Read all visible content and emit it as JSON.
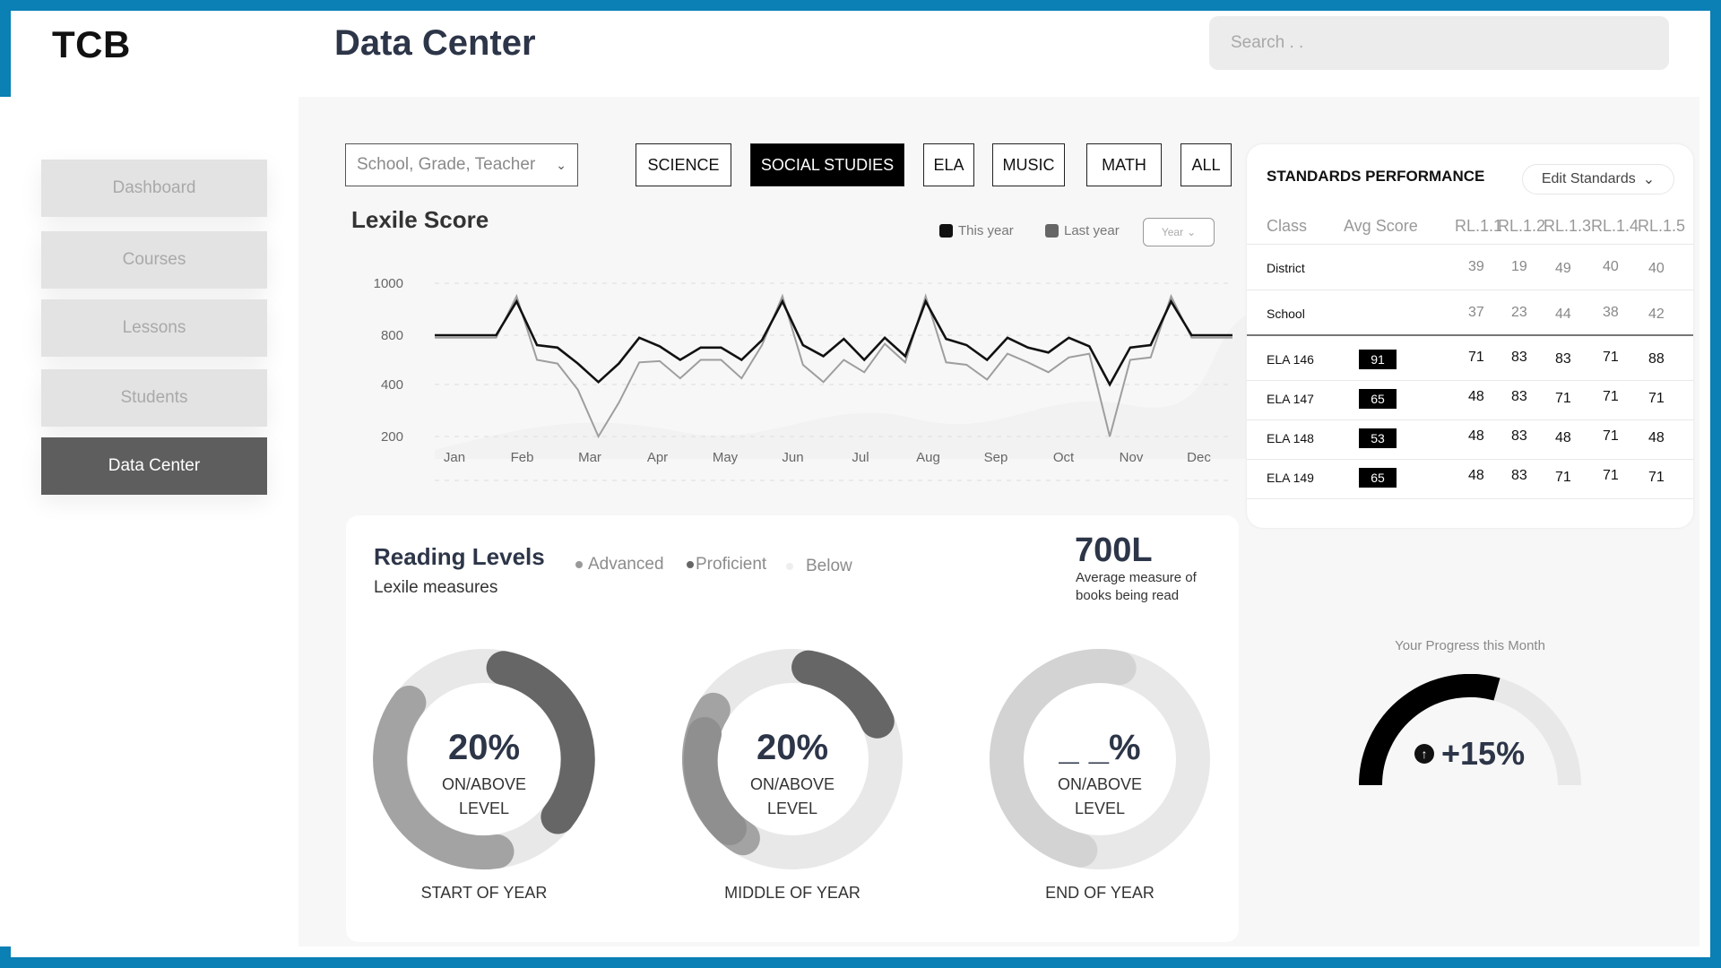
{
  "app": {
    "logo": "TCB",
    "title": "Data Center"
  },
  "search": {
    "placeholder": "Search . ."
  },
  "sidebar": {
    "items": [
      {
        "label": "Dashboard"
      },
      {
        "label": "Courses"
      },
      {
        "label": "Lessons"
      },
      {
        "label": "Students"
      },
      {
        "label": "Data Center",
        "active": true
      }
    ]
  },
  "filters": {
    "scope_select": "School, Grade, Teacher",
    "subjects": [
      "SCIENCE",
      "SOCIAL STUDIES",
      "ELA",
      "MUSIC",
      "MATH",
      "ALL"
    ],
    "active_subject": "SOCIAL STUDIES"
  },
  "lexile": {
    "title": "Lexile Score",
    "legend_this_year": "This year",
    "legend_last_year": "Last year",
    "year_select": "Year"
  },
  "chart_data": {
    "type": "line",
    "title": "Lexile Score",
    "x_ticks": [
      "Jan",
      "Feb",
      "Mar",
      "Apr",
      "May",
      "Jun",
      "Jul",
      "Aug",
      "Sep",
      "Oct",
      "Nov",
      "Dec"
    ],
    "y_ticks": [
      1000,
      800,
      400,
      200
    ],
    "series": [
      {
        "name": "This year",
        "color": "#111111",
        "values": [
          800,
          800,
          800,
          800,
          930,
          720,
          700,
          570,
          420,
          570,
          780,
          710,
          600,
          700,
          700,
          600,
          760,
          930,
          720,
          630,
          770,
          600,
          780,
          630,
          930,
          770,
          720,
          600,
          780,
          700,
          660,
          780,
          710,
          400,
          700,
          720,
          930,
          800,
          800,
          800
        ]
      },
      {
        "name": "Last year",
        "color": "#9e9e9e",
        "values": [
          780,
          780,
          780,
          780,
          950,
          600,
          570,
          380,
          200,
          330,
          580,
          590,
          450,
          600,
          600,
          450,
          720,
          950,
          560,
          420,
          600,
          500,
          730,
          580,
          950,
          580,
          560,
          440,
          650,
          580,
          500,
          620,
          650,
          200,
          600,
          620,
          950,
          780,
          780,
          780
        ]
      }
    ],
    "legend_position": "top-right",
    "grid": true
  },
  "reading": {
    "title": "Reading Levels",
    "subtitle": "Lexile measures",
    "legend": [
      "Advanced",
      "Proficient",
      "Below"
    ],
    "measure": "700L",
    "measure_desc": "Average measure of books being read",
    "donuts": [
      {
        "pct": "20%",
        "line1": "ON/ABOVE",
        "line2": "LEVEL",
        "caption": "START OF YEAR"
      },
      {
        "pct": "20%",
        "line1": "ON/ABOVE",
        "line2": "LEVEL",
        "caption": "MIDDLE OF YEAR"
      },
      {
        "pct": "_ _%",
        "line1": "ON/ABOVE",
        "line2": "LEVEL",
        "caption": "END OF YEAR"
      }
    ]
  },
  "standards": {
    "title": "STANDARDS PERFORMANCE",
    "edit_label": "Edit Standards",
    "headers": [
      "Class",
      "Avg Score",
      "RL.1.1",
      "RL.1.2",
      "RL.1.3",
      "RL.1.4",
      "RL.1.5"
    ],
    "rows": [
      {
        "class": "District",
        "avg": "",
        "scores": [
          "39",
          "19",
          "49",
          "40",
          "40"
        ]
      },
      {
        "class": "School",
        "avg": "",
        "scores": [
          "37",
          "23",
          "44",
          "38",
          "42"
        ]
      },
      {
        "class": "ELA 146",
        "avg": "91",
        "scores": [
          "71",
          "83",
          "83",
          "71",
          "88"
        ]
      },
      {
        "class": "ELA 147",
        "avg": "65",
        "scores": [
          "48",
          "83",
          "71",
          "71",
          "71"
        ]
      },
      {
        "class": "ELA 148",
        "avg": "53",
        "scores": [
          "48",
          "83",
          "48",
          "71",
          "48"
        ]
      },
      {
        "class": "ELA 149",
        "avg": "65",
        "scores": [
          "48",
          "83",
          "71",
          "71",
          "71"
        ]
      }
    ]
  },
  "progress": {
    "label": "Your Progress this Month",
    "value": "+15%"
  }
}
